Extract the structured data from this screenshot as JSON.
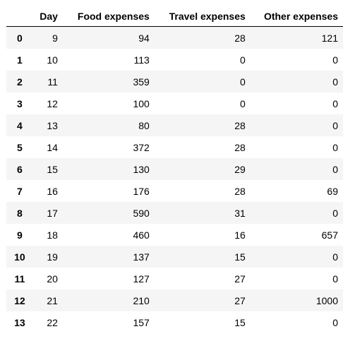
{
  "table": {
    "index_header": "",
    "columns": [
      "Day",
      "Food expenses",
      "Travel expenses",
      "Other expenses"
    ],
    "rows": [
      {
        "index": "0",
        "day": "9",
        "food": "94",
        "travel": "28",
        "other": "121"
      },
      {
        "index": "1",
        "day": "10",
        "food": "113",
        "travel": "0",
        "other": "0"
      },
      {
        "index": "2",
        "day": "11",
        "food": "359",
        "travel": "0",
        "other": "0"
      },
      {
        "index": "3",
        "day": "12",
        "food": "100",
        "travel": "0",
        "other": "0"
      },
      {
        "index": "4",
        "day": "13",
        "food": "80",
        "travel": "28",
        "other": "0"
      },
      {
        "index": "5",
        "day": "14",
        "food": "372",
        "travel": "28",
        "other": "0"
      },
      {
        "index": "6",
        "day": "15",
        "food": "130",
        "travel": "29",
        "other": "0"
      },
      {
        "index": "7",
        "day": "16",
        "food": "176",
        "travel": "28",
        "other": "69"
      },
      {
        "index": "8",
        "day": "17",
        "food": "590",
        "travel": "31",
        "other": "0"
      },
      {
        "index": "9",
        "day": "18",
        "food": "460",
        "travel": "16",
        "other": "657"
      },
      {
        "index": "10",
        "day": "19",
        "food": "137",
        "travel": "15",
        "other": "0"
      },
      {
        "index": "11",
        "day": "20",
        "food": "127",
        "travel": "27",
        "other": "0"
      },
      {
        "index": "12",
        "day": "21",
        "food": "210",
        "travel": "27",
        "other": "1000"
      },
      {
        "index": "13",
        "day": "22",
        "food": "157",
        "travel": "15",
        "other": "0"
      }
    ]
  }
}
